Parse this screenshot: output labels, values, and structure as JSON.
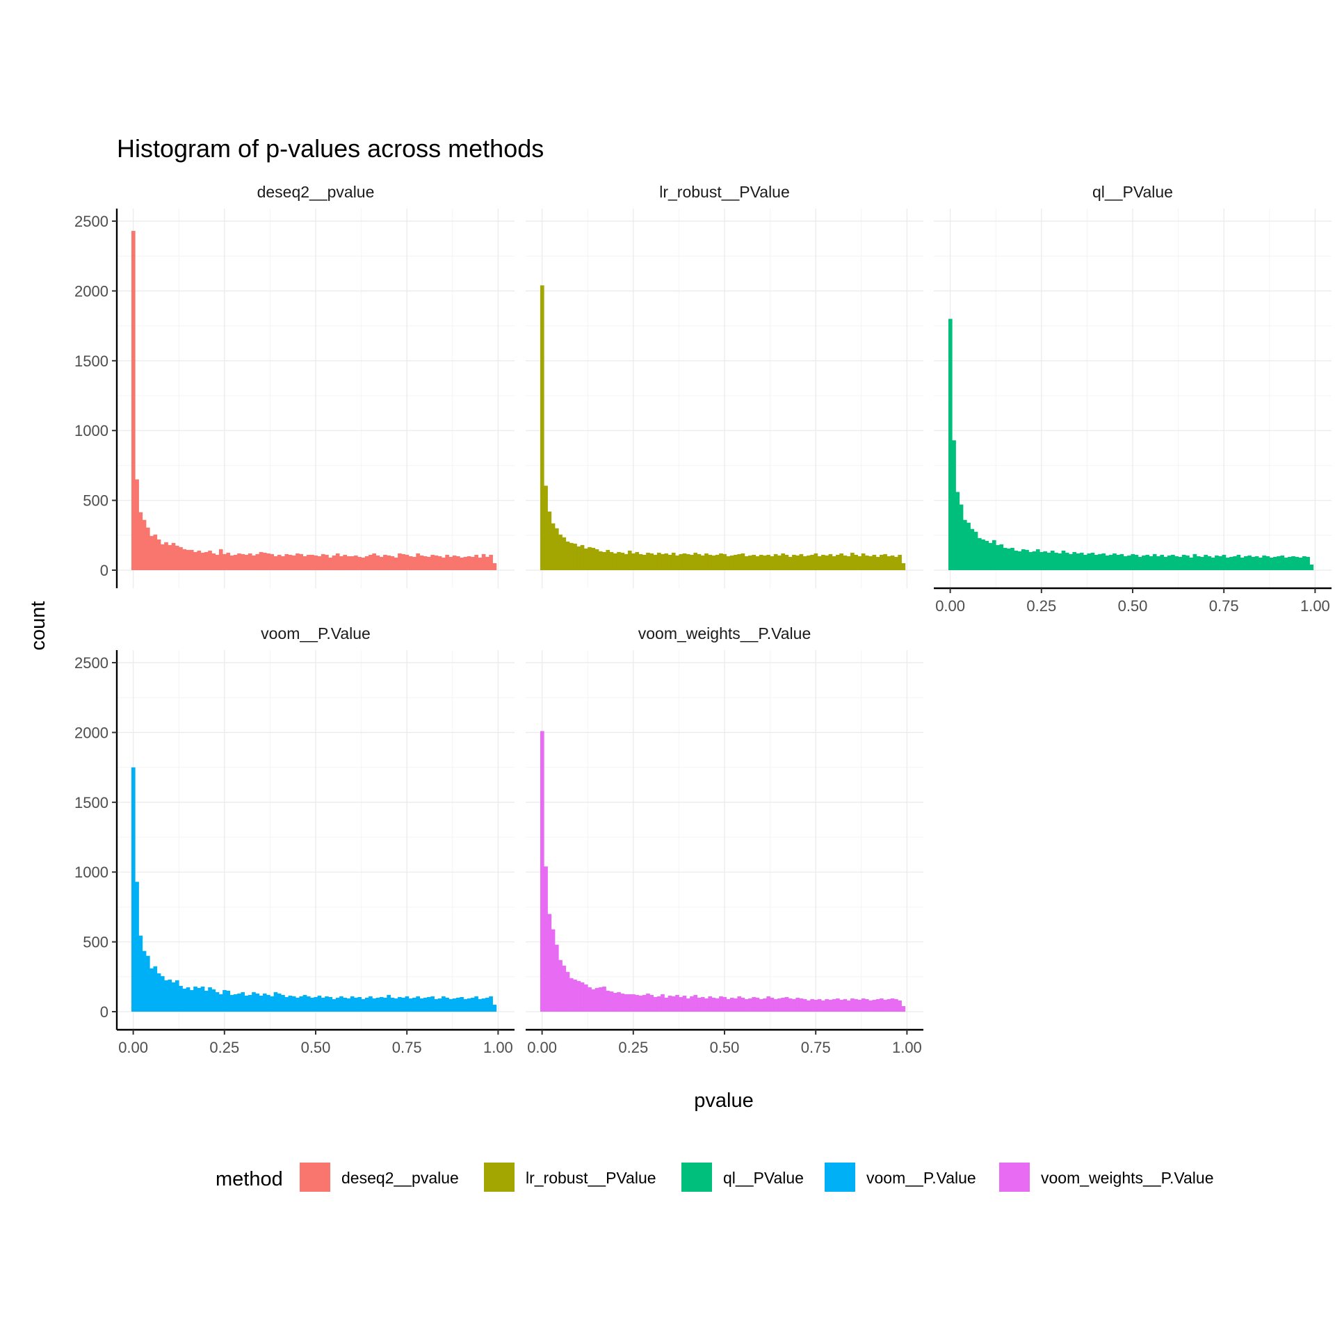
{
  "chart_data": {
    "type": "bar",
    "subtype": "histogram-facets",
    "title": "Histogram of p-values across methods",
    "xlabel": "pvalue",
    "ylabel": "count",
    "xlim": [
      0,
      1
    ],
    "ylim": [
      0,
      2500
    ],
    "x_ticks": [
      "0.00",
      "0.25",
      "0.50",
      "0.75",
      "1.00"
    ],
    "x_tick_values": [
      0,
      0.25,
      0.5,
      0.75,
      1
    ],
    "y_ticks": [
      "0",
      "500",
      "1000",
      "1500",
      "2000",
      "2500"
    ],
    "y_tick_values": [
      0,
      500,
      1000,
      1500,
      2000,
      2500
    ],
    "bins": 100,
    "bin_width": 0.01,
    "grid": true,
    "legend": {
      "title": "method",
      "position": "bottom",
      "entries": [
        {
          "name": "deseq2__pvalue",
          "color": "#F8766D"
        },
        {
          "name": "lr_robust__PValue",
          "color": "#A3A500"
        },
        {
          "name": "ql__PValue",
          "color": "#00BF7D"
        },
        {
          "name": "voom__P.Value",
          "color": "#00B0F6"
        },
        {
          "name": "voom_weights__P.Value",
          "color": "#E76BF3"
        }
      ]
    },
    "series": [
      {
        "name": "deseq2__pvalue",
        "color": "#F8766D",
        "values": [
          2430,
          650,
          415,
          360,
          305,
          245,
          255,
          220,
          185,
          200,
          180,
          195,
          175,
          165,
          150,
          145,
          145,
          130,
          140,
          125,
          130,
          140,
          120,
          110,
          150,
          115,
          125,
          105,
          110,
          120,
          115,
          110,
          120,
          105,
          115,
          130,
          125,
          120,
          115,
          100,
          110,
          100,
          115,
          110,
          105,
          120,
          115,
          100,
          110,
          110,
          105,
          100,
          115,
          110,
          90,
          105,
          120,
          100,
          110,
          100,
          100,
          105,
          95,
          90,
          100,
          110,
          120,
          105,
          95,
          110,
          105,
          100,
          90,
          120,
          115,
          110,
          100,
          95,
          120,
          105,
          100,
          95,
          110,
          105,
          100,
          90,
          110,
          95,
          105,
          100,
          90,
          95,
          100,
          95,
          110,
          90,
          115,
          95,
          110,
          50
        ]
      },
      {
        "name": "lr_robust__PValue",
        "color": "#A3A500",
        "values": [
          2040,
          605,
          420,
          335,
          300,
          255,
          235,
          205,
          195,
          190,
          170,
          180,
          155,
          165,
          160,
          150,
          135,
          130,
          145,
          130,
          120,
          130,
          125,
          115,
          140,
          120,
          130,
          115,
          110,
          125,
          120,
          110,
          125,
          115,
          120,
          110,
          125,
          105,
          115,
          120,
          115,
          110,
          125,
          115,
          105,
          120,
          110,
          105,
          110,
          120,
          115,
          100,
          105,
          110,
          115,
          120,
          100,
          105,
          110,
          100,
          110,
          105,
          110,
          100,
          115,
          105,
          120,
          110,
          95,
          110,
          105,
          115,
          100,
          105,
          110,
          120,
          100,
          110,
          105,
          115,
          100,
          110,
          120,
          105,
          100,
          125,
          110,
          100,
          120,
          105,
          100,
          110,
          95,
          110,
          115,
          100,
          105,
          95,
          110,
          50
        ]
      },
      {
        "name": "ql__PValue",
        "color": "#00BF7D",
        "values": [
          1800,
          930,
          560,
          470,
          360,
          340,
          295,
          275,
          230,
          220,
          210,
          195,
          215,
          180,
          185,
          160,
          155,
          160,
          140,
          135,
          150,
          145,
          130,
          135,
          150,
          130,
          135,
          125,
          140,
          125,
          120,
          140,
          125,
          115,
          130,
          120,
          125,
          110,
          120,
          125,
          110,
          115,
          120,
          105,
          110,
          120,
          110,
          115,
          100,
          105,
          115,
          110,
          95,
          105,
          110,
          100,
          115,
          100,
          110,
          95,
          105,
          110,
          100,
          95,
          110,
          105,
          90,
          115,
          100,
          95,
          110,
          100,
          90,
          105,
          100,
          110,
          90,
          95,
          100,
          110,
          90,
          100,
          105,
          95,
          100,
          90,
          105,
          100,
          90,
          95,
          100,
          105,
          90,
          95,
          100,
          95,
          90,
          100,
          95,
          40
        ]
      },
      {
        "name": "voom__P.Value",
        "color": "#00B0F6",
        "values": [
          1750,
          930,
          545,
          435,
          400,
          310,
          325,
          275,
          255,
          225,
          230,
          210,
          225,
          185,
          165,
          175,
          155,
          180,
          170,
          180,
          150,
          175,
          160,
          140,
          125,
          155,
          150,
          120,
          125,
          130,
          140,
          115,
          120,
          140,
          130,
          115,
          130,
          120,
          110,
          140,
          130,
          120,
          105,
          115,
          110,
          100,
          110,
          120,
          110,
          100,
          105,
          115,
          100,
          110,
          105,
          90,
          100,
          110,
          100,
          95,
          110,
          100,
          105,
          90,
          100,
          110,
          95,
          100,
          105,
          100,
          120,
          100,
          95,
          105,
          100,
          110,
          95,
          100,
          110,
          95,
          100,
          105,
          110,
          90,
          95,
          110,
          100,
          90,
          95,
          100,
          105,
          90,
          95,
          100,
          110,
          90,
          95,
          100,
          110,
          50
        ]
      },
      {
        "name": "voom_weights__P.Value",
        "color": "#E76BF3",
        "values": [
          2010,
          1040,
          700,
          590,
          480,
          370,
          330,
          285,
          240,
          230,
          220,
          210,
          195,
          175,
          160,
          170,
          175,
          180,
          150,
          145,
          135,
          140,
          130,
          125,
          125,
          125,
          120,
          115,
          120,
          130,
          120,
          105,
          110,
          125,
          100,
          115,
          110,
          120,
          105,
          115,
          95,
          110,
          120,
          100,
          105,
          95,
          110,
          100,
          95,
          110,
          105,
          90,
          100,
          95,
          110,
          100,
          90,
          95,
          105,
          100,
          90,
          95,
          110,
          100,
          90,
          95,
          100,
          105,
          95,
          90,
          100,
          95,
          90,
          80,
          90,
          85,
          90,
          80,
          90,
          85,
          90,
          95,
          85,
          90,
          80,
          95,
          90,
          85,
          95,
          90,
          80,
          85,
          90,
          95,
          85,
          90,
          95,
          90,
          80,
          40
        ]
      }
    ]
  }
}
